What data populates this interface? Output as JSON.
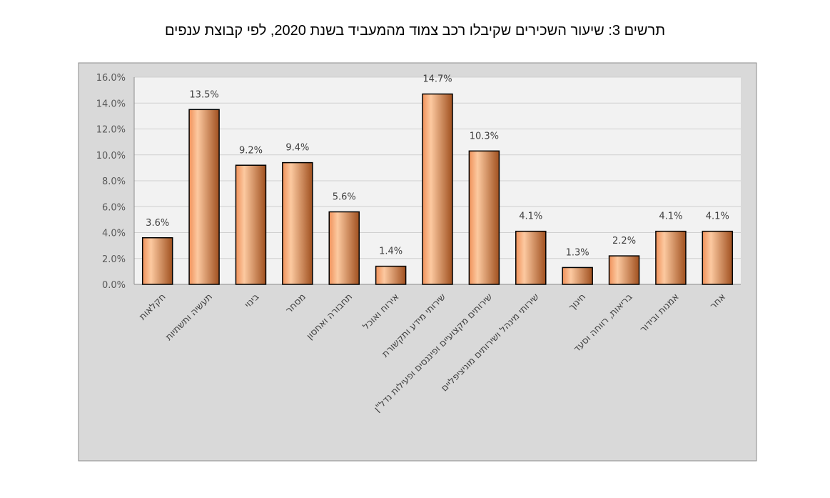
{
  "chart_data": {
    "type": "bar",
    "title": "תרשים 3: שיעור השכירים שקיבלו רכב צמוד מהמעביד בשנת 2020, לפי קבוצת ענפים",
    "xlabel": "",
    "ylabel": "",
    "ylim": [
      0,
      16
    ],
    "yticks": [
      "0.0%",
      "2.0%",
      "4.0%",
      "6.0%",
      "8.0%",
      "10.0%",
      "12.0%",
      "14.0%",
      "16.0%"
    ],
    "grid": true,
    "categories": [
      "חקלאות",
      "תעשיה ותשתיות",
      "בינוי",
      "מסחר",
      "תחבורה ואחסון",
      "אירוח  ואוכל",
      "שירותי מידע ותקשורת",
      "שירותים מקצועיים ופיננסים ופעילות נדל\"ן",
      "שירותי מינהל ושירותים מוניציפליים",
      "חינוך",
      "בריאות, רווחה וסעד",
      "אמנות ובידור",
      "אחר"
    ],
    "values": [
      3.6,
      13.5,
      9.2,
      9.4,
      5.6,
      1.4,
      14.7,
      10.3,
      4.1,
      1.3,
      2.2,
      4.1,
      4.1
    ],
    "data_labels": [
      "3.6%",
      "13.5%",
      "9.2%",
      "9.4%",
      "5.6%",
      "1.4%",
      "14.7%",
      "10.3%",
      "4.1%",
      "1.3%",
      "2.2%",
      "4.1%",
      "4.1%"
    ],
    "colors": {
      "bar_light": "#fcc9a0",
      "bar_mid": "#f0915a",
      "bar_dark": "#a0501f",
      "outer_bg": "#d9d9d9",
      "plot_bg": "#f2f2f2",
      "grid": "#d0d0d0"
    }
  }
}
